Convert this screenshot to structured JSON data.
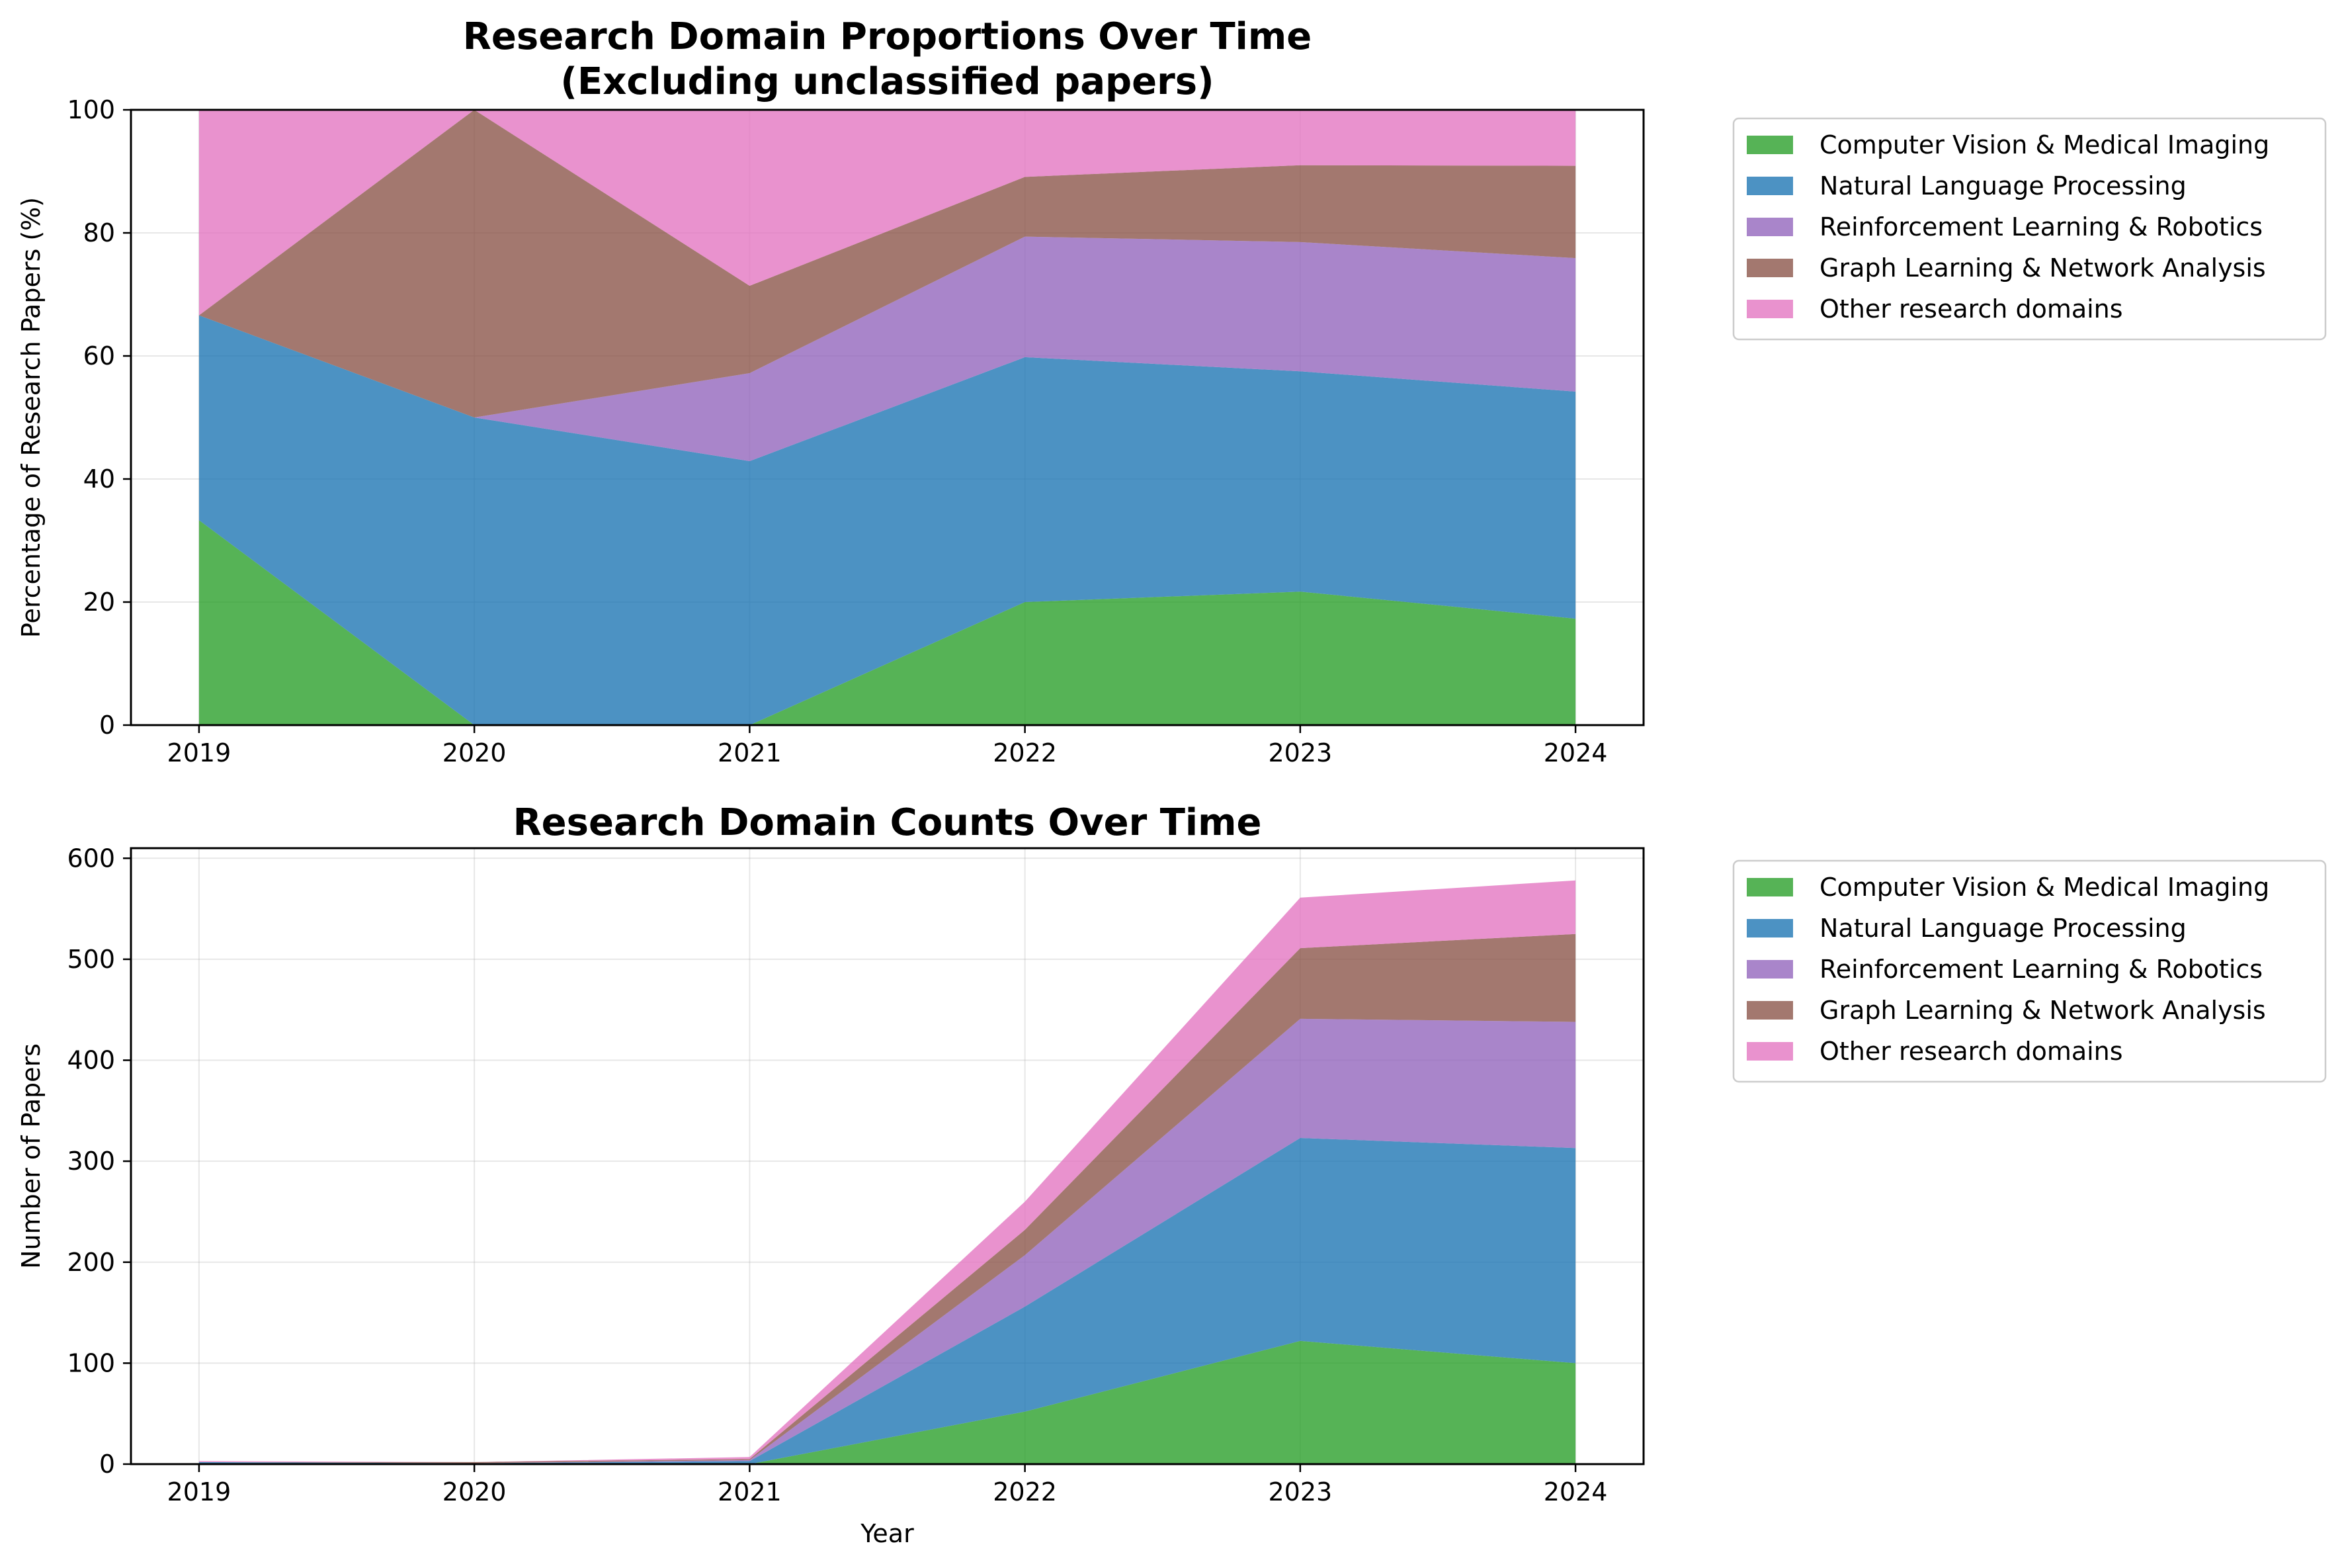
{
  "chart_data": [
    {
      "type": "area",
      "stacked": true,
      "title": "Research Domain Proportions Over Time\n(Excluding unclassified papers)",
      "xlabel": "",
      "ylabel": "Percentage of Research Papers (%)",
      "x": [
        "2019",
        "2020",
        "2021",
        "2022",
        "2023",
        "2024"
      ],
      "ylim": [
        0,
        100
      ],
      "yticks": [
        "0",
        "20",
        "40",
        "60",
        "80",
        "100"
      ],
      "grid": true,
      "legend_position": "outside-right",
      "series": [
        {
          "name": "Computer Vision & Medical Imaging",
          "color": "#2ca02c",
          "values": [
            33.3,
            0,
            0,
            20.0,
            21.7,
            17.3
          ]
        },
        {
          "name": "Natural Language Processing",
          "color": "#1f77b4",
          "values": [
            33.3,
            50.0,
            42.9,
            39.8,
            35.8,
            36.9
          ]
        },
        {
          "name": "Reinforcement Learning & Robotics",
          "color": "#9467bd",
          "values": [
            0,
            0,
            14.3,
            19.6,
            21.0,
            21.7
          ]
        },
        {
          "name": "Graph Learning & Network Analysis",
          "color": "#8c564b",
          "values": [
            0,
            50.0,
            14.2,
            9.7,
            12.5,
            15.0
          ]
        },
        {
          "name": "Other research domains",
          "color": "#e377c2",
          "values": [
            33.4,
            0,
            28.6,
            10.9,
            9.0,
            9.1
          ]
        }
      ]
    },
    {
      "type": "area",
      "stacked": true,
      "title": "Research Domain Counts Over Time",
      "xlabel": "Year",
      "ylabel": "Number of Papers",
      "x": [
        "2019",
        "2020",
        "2021",
        "2022",
        "2023",
        "2024"
      ],
      "ylim": [
        0,
        610
      ],
      "yticks": [
        "0",
        "100",
        "200",
        "300",
        "400",
        "500",
        "600"
      ],
      "grid": true,
      "legend_position": "outside-right",
      "series": [
        {
          "name": "Computer Vision & Medical Imaging",
          "color": "#2ca02c",
          "values": [
            1,
            0,
            0,
            52,
            122,
            100
          ]
        },
        {
          "name": "Natural Language Processing",
          "color": "#1f77b4",
          "values": [
            1,
            1,
            3,
            104,
            201,
            213
          ]
        },
        {
          "name": "Reinforcement Learning & Robotics",
          "color": "#9467bd",
          "values": [
            0,
            0,
            1,
            51,
            118,
            125
          ]
        },
        {
          "name": "Graph Learning & Network Analysis",
          "color": "#8c564b",
          "values": [
            0,
            1,
            1,
            25,
            70,
            87
          ]
        },
        {
          "name": "Other research domains",
          "color": "#e377c2",
          "values": [
            1,
            0,
            2,
            28,
            50,
            53
          ]
        }
      ]
    }
  ]
}
